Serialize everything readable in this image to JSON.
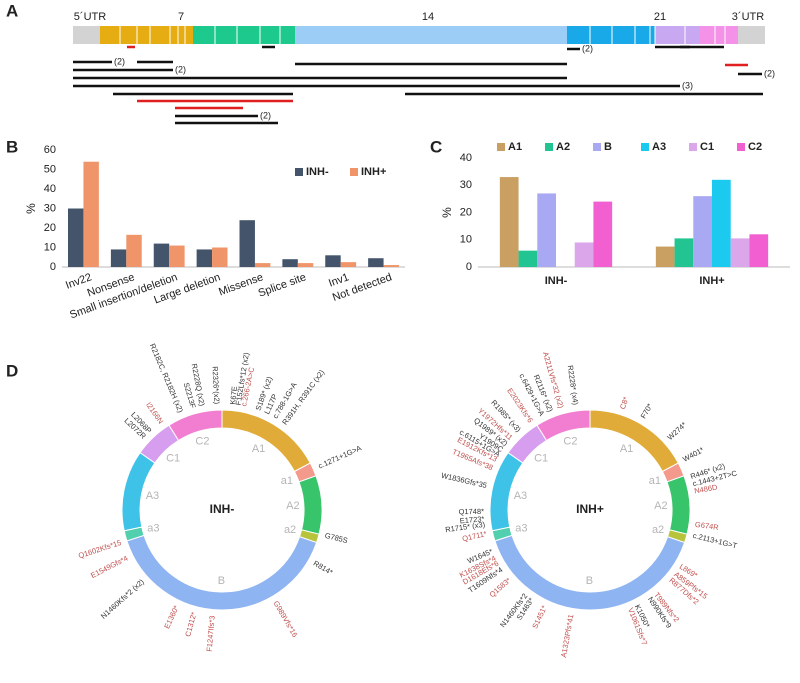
{
  "panel_labels": [
    "A",
    "B",
    "C",
    "D"
  ],
  "gene_map": {
    "utr5": "5´UTR",
    "exons": [
      "7",
      "14",
      "21"
    ],
    "utr3": "3´UTR",
    "counts": [
      "(2)",
      "(2)",
      "(2)",
      "(2)",
      "(3)",
      "(2)"
    ]
  },
  "chart_data": [
    {
      "type": "bar",
      "ylabel": "%",
      "categories": [
        "Inv22",
        "Nonsense",
        "Small insertion/deletion",
        "Large deletion",
        "Missense",
        "Splice site",
        "Inv1",
        "Not detected"
      ],
      "series": [
        {
          "name": "INH-",
          "color": "#44546a",
          "values": [
            30,
            9,
            12,
            9,
            24,
            4,
            6,
            4.5
          ]
        },
        {
          "name": "INH+",
          "color": "#f0956a",
          "values": [
            54,
            16.5,
            11,
            10,
            2,
            2,
            2.5,
            1
          ]
        }
      ],
      "ylim": [
        0,
        60
      ],
      "yticks": [
        0,
        10,
        20,
        30,
        40,
        50,
        60
      ],
      "grid": false,
      "legend": "upper right"
    },
    {
      "type": "bar",
      "ylabel": "%",
      "categories": [
        "INH-",
        "INH+"
      ],
      "series": [
        {
          "name": "A1",
          "color": "#c9a062",
          "values": [
            33,
            7.5
          ]
        },
        {
          "name": "A2",
          "color": "#22c592",
          "values": [
            6,
            10.5
          ]
        },
        {
          "name": "B",
          "color": "#a9a9f3",
          "values": [
            27,
            26
          ]
        },
        {
          "name": "A3",
          "color": "#1ccaf0",
          "values": [
            0,
            32
          ]
        },
        {
          "name": "C1",
          "color": "#dca6ea",
          "values": [
            9,
            10.5
          ]
        },
        {
          "name": "C2",
          "color": "#f25fd0",
          "values": [
            24,
            12
          ]
        }
      ],
      "ylim": [
        0,
        40
      ],
      "yticks": [
        0,
        10,
        20,
        30,
        40
      ],
      "grid": false,
      "legend": "top"
    }
  ],
  "domain_rings": [
    {
      "center_label": "INH-",
      "domains": [
        "A1",
        "a1",
        "A2",
        "a2",
        "B",
        "a3",
        "A3",
        "C1",
        "C2"
      ],
      "mutations": [
        {
          "text": "L2072R",
          "color": "#333333"
        },
        {
          "text": "L2068P",
          "color": "#333333"
        },
        {
          "text": "I2166N",
          "color": "#c0504d"
        },
        {
          "text": "R2182C, R2182H (x2)",
          "color": "#333333"
        },
        {
          "text": "S2213F",
          "color": "#333333"
        },
        {
          "text": "R2228Q (x2)",
          "color": "#333333"
        },
        {
          "text": "R2326*(x2)",
          "color": "#333333"
        },
        {
          "text": "K67E",
          "color": "#333333"
        },
        {
          "text": "F152Lfs*12 (x2)",
          "color": "#333333"
        },
        {
          "text": "c.266-2A>C",
          "color": "#c0504d"
        },
        {
          "text": "S189* (x2)",
          "color": "#333333"
        },
        {
          "text": "L117P",
          "color": "#333333"
        },
        {
          "text": "c.788-1G>A",
          "color": "#333333"
        },
        {
          "text": "R391H, R391C (x2)",
          "color": "#333333"
        },
        {
          "text": "c.1271+1G>A",
          "color": "#333333"
        },
        {
          "text": "G785S",
          "color": "#333333"
        },
        {
          "text": "R814*",
          "color": "#333333"
        },
        {
          "text": "G989Vfs*16",
          "color": "#c0504d"
        },
        {
          "text": "F1247Ifs*3",
          "color": "#c0504d"
        },
        {
          "text": "C1312*",
          "color": "#c0504d"
        },
        {
          "text": "E1360*",
          "color": "#c0504d"
        },
        {
          "text": "N1460Kfs*2 (x2)",
          "color": "#333333"
        },
        {
          "text": "E1549Gfs*4",
          "color": "#c0504d"
        },
        {
          "text": "Q1602Kfs*15",
          "color": "#c0504d"
        }
      ]
    },
    {
      "center_label": "INH+",
      "domains": [
        "A1",
        "a1",
        "A2",
        "a2",
        "B",
        "a3",
        "A3",
        "C1",
        "C2"
      ],
      "mutations": [
        {
          "text": "C8*",
          "color": "#c0504d"
        },
        {
          "text": "F70*",
          "color": "#333333"
        },
        {
          "text": "W274*",
          "color": "#333333"
        },
        {
          "text": "W401*",
          "color": "#333333"
        },
        {
          "text": "R446* (x2)",
          "color": "#333333"
        },
        {
          "text": "c.1443+2T>C",
          "color": "#333333"
        },
        {
          "text": "N486D",
          "color": "#c0504d"
        },
        {
          "text": "G674R",
          "color": "#c0504d"
        },
        {
          "text": "c.2113+1G>T",
          "color": "#333333"
        },
        {
          "text": "L869*",
          "color": "#c0504d"
        },
        {
          "text": "A859Pfs*15",
          "color": "#c0504d"
        },
        {
          "text": "R877Dfs*2",
          "color": "#c0504d"
        },
        {
          "text": "T989Nfs*2",
          "color": "#c0504d"
        },
        {
          "text": "N990Kfs*9",
          "color": "#333333"
        },
        {
          "text": "K1050*",
          "color": "#333333"
        },
        {
          "text": "V1061Sfs*7",
          "color": "#c0504d"
        },
        {
          "text": "A1323Pfs*41",
          "color": "#c0504d"
        },
        {
          "text": "S1451*",
          "color": "#c0504d"
        },
        {
          "text": "S1463*",
          "color": "#333333"
        },
        {
          "text": "N1460Kfs*2",
          "color": "#333333"
        },
        {
          "text": "Q1583*",
          "color": "#c0504d"
        },
        {
          "text": "T1609Nfs*4",
          "color": "#333333"
        },
        {
          "text": "D1618Efs*6",
          "color": "#c0504d"
        },
        {
          "text": "K1638Sfs*4",
          "color": "#c0504d"
        },
        {
          "text": "W1645*",
          "color": "#333333"
        },
        {
          "text": "Q1711*",
          "color": "#c0504d"
        },
        {
          "text": "R1715* (x3)",
          "color": "#333333"
        },
        {
          "text": "E1723*",
          "color": "#333333"
        },
        {
          "text": "Q1748*",
          "color": "#333333"
        },
        {
          "text": "W1836Gfs*35",
          "color": "#333333"
        },
        {
          "text": "T1965Afs*38",
          "color": "#c0504d"
        },
        {
          "text": "E1912Kfs*13",
          "color": "#c0504d"
        },
        {
          "text": "c.6115+1G>A",
          "color": "#333333"
        },
        {
          "text": "Y1909C",
          "color": "#333333"
        },
        {
          "text": "Q1989* (x2)",
          "color": "#333333"
        },
        {
          "text": "Y1972Hfs*11",
          "color": "#c0504d"
        },
        {
          "text": "R1985* (x3)",
          "color": "#333333"
        },
        {
          "text": "E2023Kfs*6",
          "color": "#c0504d"
        },
        {
          "text": "c.6429+1G>A",
          "color": "#333333"
        },
        {
          "text": "R2116* (x2)",
          "color": "#333333"
        },
        {
          "text": "A2211Vfs*32 (x2)",
          "color": "#c0504d"
        },
        {
          "text": "R2228* (x4)",
          "color": "#333333"
        }
      ]
    }
  ]
}
